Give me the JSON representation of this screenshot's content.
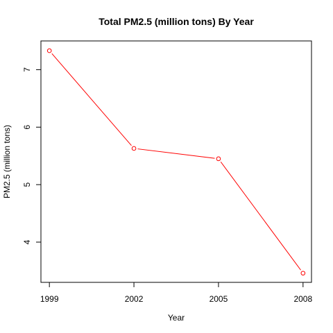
{
  "chart_data": {
    "type": "line",
    "title": "Total PM2.5 (million tons) By Year",
    "xlabel": "Year",
    "ylabel": "PM2.5 (million tons)",
    "x": [
      1999,
      2002,
      2005,
      2008
    ],
    "xticks": [
      "1999",
      "2002",
      "2005",
      "2008"
    ],
    "yticks": [
      "4",
      "5",
      "6",
      "7"
    ],
    "series": [
      {
        "values": [
          7.33,
          5.63,
          5.45,
          3.46
        ],
        "color": "#ff0000"
      }
    ],
    "xlim": [
      1998.7,
      2008.3
    ],
    "ylim": [
      3.3,
      7.5
    ],
    "grid": false,
    "legend": "none"
  }
}
